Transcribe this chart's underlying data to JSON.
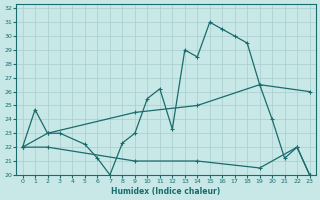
{
  "xlabel": "Humidex (Indice chaleur)",
  "bg_color": "#c8e8e8",
  "grid_color": "#b0d0d0",
  "line_color": "#1a6b6b",
  "xlim": [
    -0.5,
    23.5
  ],
  "ylim": [
    20,
    32.3
  ],
  "x_ticks": [
    0,
    1,
    2,
    3,
    4,
    5,
    6,
    7,
    8,
    9,
    10,
    11,
    12,
    13,
    14,
    15,
    16,
    17,
    18,
    19,
    20,
    21,
    22,
    23
  ],
  "y_ticks": [
    20,
    21,
    22,
    23,
    24,
    25,
    26,
    27,
    28,
    29,
    30,
    31,
    32
  ],
  "line1_x": [
    0,
    1,
    2,
    3,
    5,
    6,
    7,
    8,
    9,
    10,
    11,
    12,
    13,
    14,
    15,
    16,
    17,
    18,
    19,
    20,
    21,
    22,
    23
  ],
  "line1_y": [
    22,
    24.7,
    23,
    23,
    22.2,
    21.2,
    20.0,
    22.3,
    23.0,
    25.5,
    26.2,
    23.3,
    29.0,
    28.5,
    31.0,
    30.5,
    30.0,
    29.5,
    26.5,
    24.0,
    21.2,
    22.0,
    20.0
  ],
  "line2_x": [
    0,
    2,
    9,
    14,
    19,
    23
  ],
  "line2_y": [
    22.0,
    23.0,
    24.5,
    25.0,
    26.5,
    26.0
  ],
  "line3_x": [
    0,
    2,
    9,
    14,
    19,
    22,
    23
  ],
  "line3_y": [
    22.0,
    22.0,
    21.0,
    21.0,
    20.5,
    22.0,
    20.0
  ]
}
